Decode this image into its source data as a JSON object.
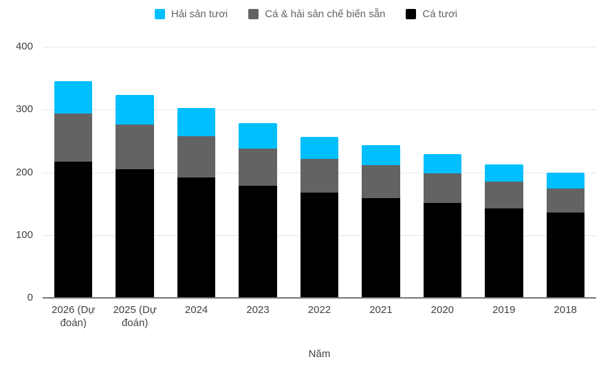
{
  "legend": {
    "items": [
      {
        "label": "Hải sản tươi",
        "color": "#00bfff"
      },
      {
        "label": "Cá & hải sản chế biến sẵn",
        "color": "#636363"
      },
      {
        "label": "Cá tươi",
        "color": "#000000"
      }
    ]
  },
  "axes": {
    "y_ticks": [
      400,
      300,
      200,
      100,
      0
    ],
    "x_title": "Năm"
  },
  "colors": {
    "gridline": "#e6e6e6",
    "baseline": "#757575",
    "axis_text": "#424242",
    "legend_text": "#5f6368"
  },
  "chart_data": {
    "type": "bar",
    "stacked": true,
    "title": "",
    "xlabel": "Năm",
    "ylabel": "",
    "ylim": [
      0,
      400
    ],
    "grid": true,
    "legend_position": "top",
    "categories": [
      "2026 (Dự đoán)",
      "2025 (Dự đoán)",
      "2024",
      "2023",
      "2022",
      "2021",
      "2020",
      "2019",
      "2018"
    ],
    "series": [
      {
        "name": "Cá tươi",
        "color": "#000000",
        "values": [
          217,
          205,
          192,
          179,
          168,
          159,
          151,
          143,
          136
        ]
      },
      {
        "name": "Cá & hải sản chế biến sẵn",
        "color": "#636363",
        "values": [
          77,
          71,
          66,
          59,
          53,
          52,
          47,
          42,
          38
        ]
      },
      {
        "name": "Hải sản tươi",
        "color": "#00bfff",
        "values": [
          51,
          47,
          44,
          40,
          36,
          32,
          31,
          28,
          25
        ]
      }
    ],
    "totals": [
      345,
      323,
      302,
      278,
      257,
      243,
      229,
      213,
      199
    ]
  }
}
